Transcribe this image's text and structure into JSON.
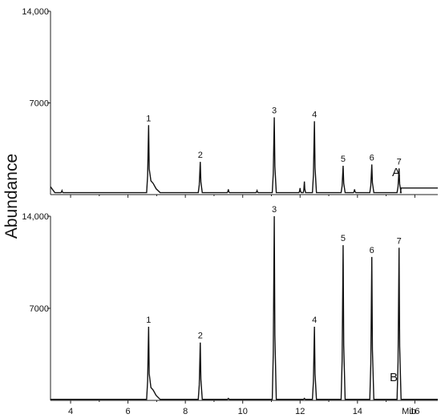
{
  "chart_data": [
    {
      "type": "line",
      "panel_label": "A",
      "x_unit": "Min",
      "ylabel": "Abundance",
      "xlim": [
        3.3,
        16.8
      ],
      "ylim": [
        0,
        14000
      ],
      "x_ticks": [
        4,
        6,
        8,
        10,
        12,
        14,
        16
      ],
      "y_ticks": [
        7000,
        14000
      ],
      "y_tick_labels": [
        "7000",
        "14,000"
      ],
      "baseline": 150,
      "peaks": [
        {
          "label": "1",
          "x": 6.72,
          "y": 5300
        },
        {
          "label": "2",
          "x": 8.52,
          "y": 2500
        },
        {
          "label": "3",
          "x": 11.1,
          "y": 5900
        },
        {
          "label": "4",
          "x": 12.5,
          "y": 5600
        },
        {
          "label": "5",
          "x": 13.5,
          "y": 2200
        },
        {
          "label": "6",
          "x": 14.5,
          "y": 2300
        },
        {
          "label": "7",
          "x": 15.45,
          "y": 2000
        }
      ],
      "minor_peaks": [
        {
          "x": 3.7,
          "y": 300
        },
        {
          "x": 9.5,
          "y": 400
        },
        {
          "x": 10.5,
          "y": 300
        },
        {
          "x": 12.0,
          "y": 500
        },
        {
          "x": 12.15,
          "y": 1000
        },
        {
          "x": 13.9,
          "y": 400
        }
      ],
      "late_baseline": {
        "from_x": 15.5,
        "y": 500
      }
    },
    {
      "type": "line",
      "panel_label": "B",
      "x_unit": "Min",
      "ylabel": "Abundance",
      "xlim": [
        3.3,
        16.8
      ],
      "ylim": [
        0,
        14000
      ],
      "x_ticks": [
        4,
        6,
        8,
        10,
        12,
        14,
        16
      ],
      "y_ticks": [
        7000,
        14000
      ],
      "y_tick_labels": [
        "7000",
        "14,000"
      ],
      "baseline": 80,
      "peaks": [
        {
          "label": "1",
          "x": 6.72,
          "y": 5600
        },
        {
          "label": "2",
          "x": 8.52,
          "y": 4400
        },
        {
          "label": "3",
          "x": 11.1,
          "y": 14000
        },
        {
          "label": "4",
          "x": 12.5,
          "y": 5600
        },
        {
          "label": "5",
          "x": 13.5,
          "y": 11800
        },
        {
          "label": "6",
          "x": 14.5,
          "y": 10900
        },
        {
          "label": "7",
          "x": 15.45,
          "y": 11600
        }
      ],
      "minor_peaks": [
        {
          "x": 9.5,
          "y": 150
        },
        {
          "x": 12.15,
          "y": 150
        }
      ]
    }
  ]
}
